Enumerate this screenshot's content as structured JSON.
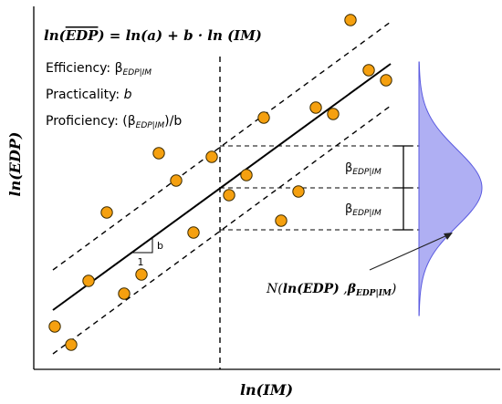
{
  "diagram": {
    "title_equation": {
      "lhs": "ln",
      "edp_hat": "EDP",
      "rhs": "= ln(a) + b · ln (IM)"
    },
    "info_lines": {
      "efficiency_label": "Efficiency: ",
      "practicality_label": "Practicality: ",
      "practicality_value": "b",
      "proficiency_label": "Proficiency: ",
      "beta_symbol": "β",
      "beta_subscript": "EDP|IM",
      "over_b": "/b"
    },
    "axes": {
      "x_label": "ln(IM)",
      "y_label": "ln(EDP)"
    },
    "slope_triangle": {
      "run_label": "1",
      "rise_label": "b"
    },
    "dispersion_labels": {
      "upper": {
        "symbol": "β",
        "subscript": "EDP|IM"
      },
      "lower": {
        "symbol": "β",
        "subscript": "EDP|IM"
      }
    },
    "distribution_label": {
      "prefix": "N",
      "ln_edp": "ln(EDP)",
      "beta": "β",
      "beta_subscript": "EDP|IM"
    },
    "colors": {
      "point_fill": "#f5a00f",
      "point_stroke": "#3a2a00",
      "distribution_fill": "#9b9bf0",
      "distribution_stroke": "#5a5ae0",
      "line": "#000000"
    },
    "data_points": [
      [
        60,
        358
      ],
      [
        78,
        378
      ],
      [
        97,
        308
      ],
      [
        117,
        233
      ],
      [
        136,
        322
      ],
      [
        155,
        301
      ],
      [
        174,
        168
      ],
      [
        193,
        198
      ],
      [
        212,
        255
      ],
      [
        232,
        172
      ],
      [
        251,
        214
      ],
      [
        270,
        192
      ],
      [
        289,
        129
      ],
      [
        308,
        242
      ],
      [
        327,
        210
      ],
      [
        346,
        118
      ],
      [
        365,
        125
      ],
      [
        384,
        22
      ],
      [
        404,
        77
      ],
      [
        423,
        88
      ]
    ]
  }
}
